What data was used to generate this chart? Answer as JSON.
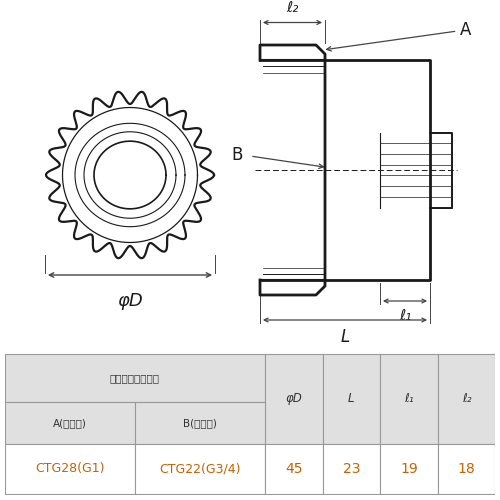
{
  "table": {
    "header_row1_text": "受け口ねじの呼び",
    "col_A_label": "A(おねじ)",
    "col_B_label": "B(めねじ)",
    "col_phiD": "φD",
    "col_L": "L",
    "col_l1": "ℓ₁",
    "col_l2": "ℓ₂",
    "val_A": "CTG28(G1)",
    "val_B": "CTG22(G3/4)",
    "val_phiD": "45",
    "val_L": "23",
    "val_l1": "19",
    "val_l2": "18",
    "header_bg": "#e0e0e0",
    "data_bg": "#ffffff",
    "border_color": "#999999",
    "text_dark": "#333333",
    "text_orange": "#cc6000"
  },
  "draw": {
    "line_color": "#1a1a1a",
    "dim_color": "#444444",
    "fill_light": "#f0f0f0",
    "label_A": "A",
    "label_B": "B",
    "label_phiD": "φD",
    "label_L": "L",
    "label_l1": "ℓ₁",
    "label_l2": "ℓ₂"
  }
}
